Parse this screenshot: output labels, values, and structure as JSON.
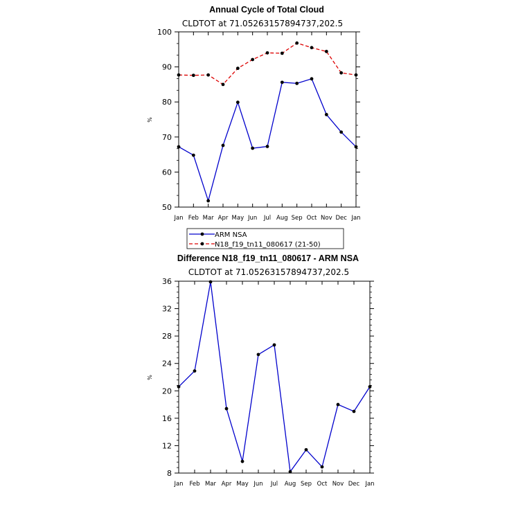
{
  "chart_data": [
    {
      "type": "line",
      "title": "Annual Cycle of Total Cloud",
      "subtitle": "CLDTOT at 71.05263157894737,202.5",
      "ylabel": "%",
      "xlabel": "",
      "categories": [
        "Jan",
        "Feb",
        "Mar",
        "Apr",
        "May",
        "Jun",
        "Jul",
        "Aug",
        "Sep",
        "Oct",
        "Nov",
        "Dec",
        "Jan"
      ],
      "ylim": [
        50,
        100
      ],
      "yticks": [
        50,
        60,
        70,
        80,
        90,
        100
      ],
      "series": [
        {
          "name": "ARM NSA",
          "color": "#0000cc",
          "dash": "solid",
          "values": [
            67.2,
            64.8,
            51.8,
            67.6,
            79.9,
            66.8,
            67.3,
            85.6,
            85.3,
            86.6,
            76.4,
            71.4,
            67.2
          ]
        },
        {
          "name": "N18_f19_tn11_080617 (21-50)",
          "color": "#dd0000",
          "dash": "dashed",
          "values": [
            87.7,
            87.6,
            87.7,
            85.0,
            89.6,
            92.1,
            94.0,
            93.9,
            96.8,
            95.5,
            94.4,
            88.3,
            87.7
          ]
        }
      ],
      "legend": [
        "ARM NSA",
        "N18_f19_tn11_080617 (21-50)"
      ],
      "legend_position": "bottom"
    },
    {
      "type": "line",
      "title": "Difference N18_f19_tn11_080617 - ARM NSA",
      "subtitle": "CLDTOT at 71.05263157894737,202.5",
      "ylabel": "%",
      "xlabel": "",
      "categories": [
        "Jan",
        "Feb",
        "Mar",
        "Apr",
        "May",
        "Jun",
        "Jul",
        "Aug",
        "Sep",
        "Oct",
        "Nov",
        "Dec",
        "Jan"
      ],
      "ylim": [
        8,
        36
      ],
      "yticks": [
        8,
        12,
        16,
        20,
        24,
        28,
        32,
        36
      ],
      "series": [
        {
          "color": "#0000cc",
          "dash": "solid",
          "values": [
            20.6,
            22.9,
            35.9,
            17.4,
            9.7,
            25.3,
            26.7,
            8.2,
            11.4,
            8.9,
            18.0,
            17.0,
            20.6
          ]
        }
      ]
    }
  ]
}
